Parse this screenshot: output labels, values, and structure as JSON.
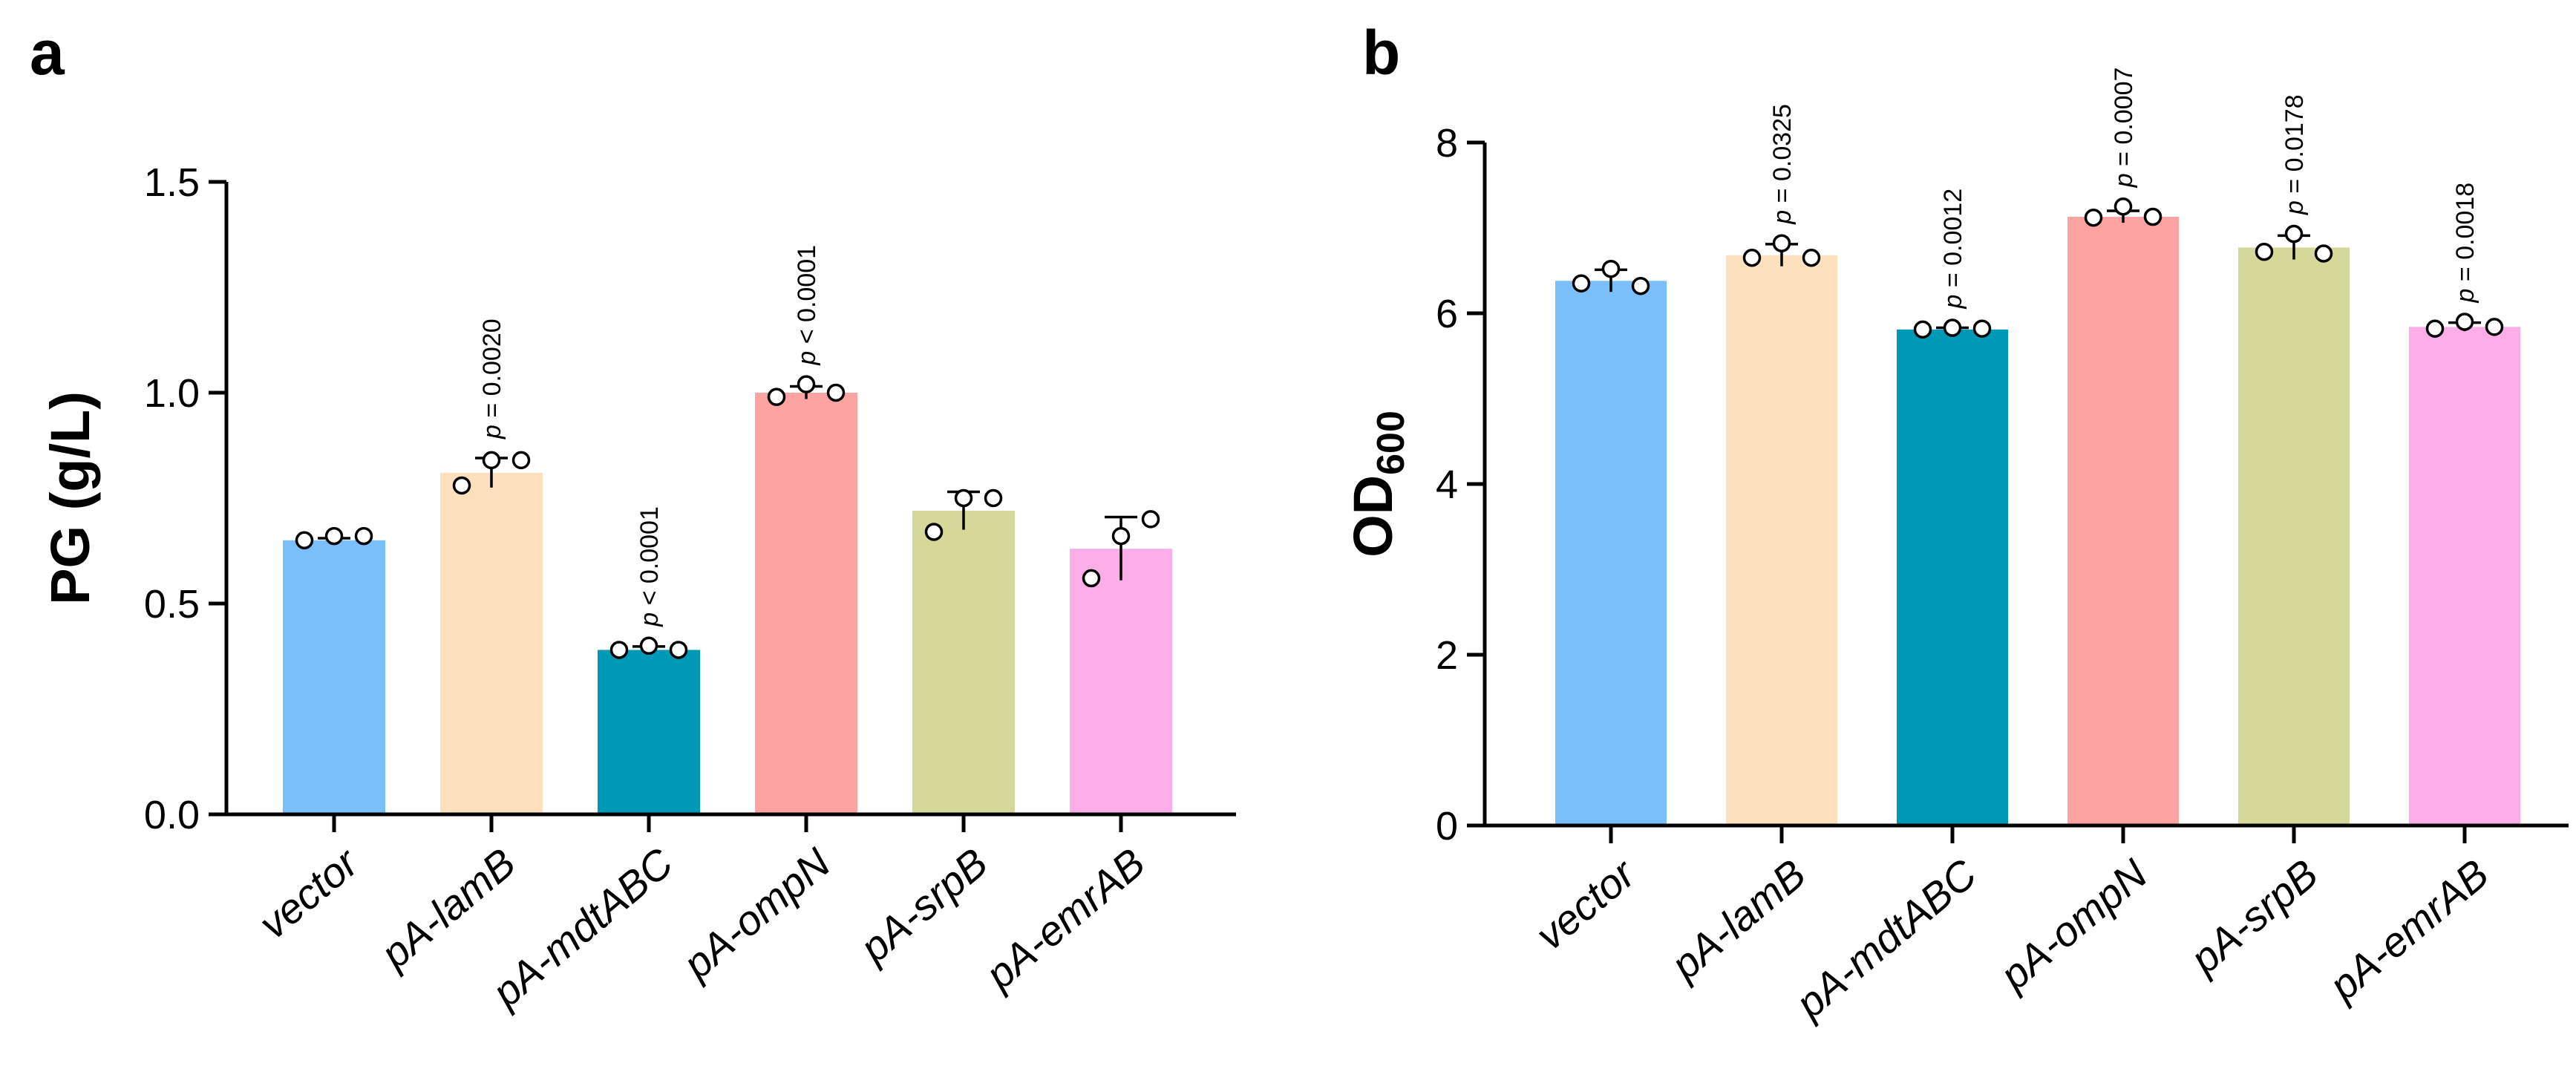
{
  "chart_data": [
    {
      "type": "bar",
      "panel_label": "a",
      "ylabel": "PG (g/L)",
      "ylim": [
        0,
        1.5
      ],
      "yticks": [
        "0.0",
        "0.5",
        "1.0",
        "1.5"
      ],
      "categories": [
        "vector",
        "pA-lamB",
        "pA-mdtABC",
        "pA-ompN",
        "pA-srpB",
        "pA-emrAB"
      ],
      "category_parts": [
        {
          "p": "",
          "i": "vector"
        },
        {
          "p": "pA-",
          "i": "lamB"
        },
        {
          "p": "pA-",
          "i": "mdtABC"
        },
        {
          "p": "pA-",
          "i": "ompN"
        },
        {
          "p": "pA-",
          "i": "srpB"
        },
        {
          "p": "pA-",
          "i": "emrAB"
        }
      ],
      "values": [
        0.65,
        0.81,
        0.39,
        1.0,
        0.72,
        0.63
      ],
      "error": [
        0.005,
        0.035,
        0.008,
        0.015,
        0.045,
        0.075
      ],
      "points": [
        [
          0.65,
          0.66,
          0.66
        ],
        [
          0.78,
          0.84,
          0.84
        ],
        [
          0.39,
          0.4,
          0.39
        ],
        [
          0.99,
          1.02,
          1.0
        ],
        [
          0.67,
          0.75,
          0.75
        ],
        [
          0.56,
          0.66,
          0.7
        ]
      ],
      "colors": [
        "#7abffa",
        "#fde1bf",
        "#0099b5",
        "#fda3a1",
        "#d6d89a",
        "#fcaee9"
      ],
      "annotations": [
        null,
        "p = 0.0020",
        "p < 0.0001",
        "p < 0.0001",
        null,
        null
      ]
    },
    {
      "type": "bar",
      "panel_label": "b",
      "ylabel": "OD",
      "ylabel_sub": "600",
      "ylim": [
        0,
        8
      ],
      "yticks": [
        "0",
        "2",
        "4",
        "6",
        "8"
      ],
      "categories": [
        "vector",
        "pA-lamB",
        "pA-mdtABC",
        "pA-ompN",
        "pA-srpB",
        "pA-emrAB"
      ],
      "category_parts": [
        {
          "p": "",
          "i": "vector"
        },
        {
          "p": "pA-",
          "i": "lamB"
        },
        {
          "p": "pA-",
          "i": "mdtABC"
        },
        {
          "p": "pA-",
          "i": "ompN"
        },
        {
          "p": "pA-",
          "i": "srpB"
        },
        {
          "p": "pA-",
          "i": "emrAB"
        }
      ],
      "values": [
        6.38,
        6.68,
        5.81,
        7.13,
        6.77,
        5.84
      ],
      "error": [
        0.13,
        0.13,
        0.02,
        0.07,
        0.14,
        0.05
      ],
      "points": [
        [
          6.35,
          6.52,
          6.32
        ],
        [
          6.65,
          6.82,
          6.65
        ],
        [
          5.81,
          5.83,
          5.82
        ],
        [
          7.12,
          7.25,
          7.13
        ],
        [
          6.72,
          6.93,
          6.7
        ],
        [
          5.82,
          5.9,
          5.84
        ]
      ],
      "colors": [
        "#7abffa",
        "#fde1bf",
        "#0099b5",
        "#fda3a1",
        "#d6d89a",
        "#fcaee9"
      ],
      "annotations": [
        null,
        "p = 0.0325",
        "p = 0.0012",
        "p = 0.0007",
        "p = 0.0178",
        "p = 0.0018"
      ]
    }
  ]
}
